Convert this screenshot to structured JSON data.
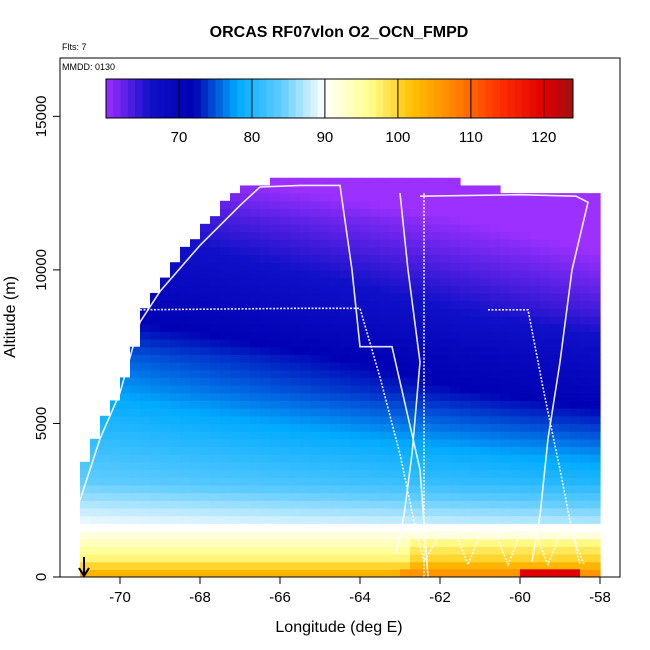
{
  "chart_data": {
    "type": "heatmap",
    "title": "ORCAS RF07vlon O2_OCN_FMPD",
    "annotations": {
      "flights": "Flts: 7",
      "date": "MMDD: 0130"
    },
    "xlabel": "Longitude (deg E)",
    "ylabel": "Altitude (m)",
    "xlim": [
      -71.5,
      -57.5
    ],
    "ylim": [
      0,
      16900
    ],
    "x_ticks": [
      -70,
      -68,
      -66,
      -64,
      -62,
      -60,
      -58
    ],
    "x_tick_labels": [
      "-70",
      "-68",
      "-66",
      "-64",
      "-62",
      "-60",
      "-58"
    ],
    "y_ticks": [
      0,
      5000,
      10000,
      15000
    ],
    "y_tick_labels": [
      "0",
      "5000",
      "10000",
      "15000"
    ],
    "grid": false,
    "colorbar": {
      "range": [
        60,
        124
      ],
      "ticks": [
        70,
        80,
        90,
        100,
        110,
        120
      ],
      "tick_labels": [
        "70",
        "80",
        "90",
        "100",
        "110",
        "120"
      ],
      "stops": [
        {
          "v": 60,
          "c": "#9b30ff"
        },
        {
          "v": 66,
          "c": "#1010c8"
        },
        {
          "v": 72,
          "c": "#0000b4"
        },
        {
          "v": 78,
          "c": "#00aaff"
        },
        {
          "v": 84,
          "c": "#60ccff"
        },
        {
          "v": 90,
          "c": "#ffffff"
        },
        {
          "v": 96,
          "c": "#ffff90"
        },
        {
          "v": 102,
          "c": "#ffc000"
        },
        {
          "v": 108,
          "c": "#ff8000"
        },
        {
          "v": 114,
          "c": "#ff3000"
        },
        {
          "v": 120,
          "c": "#e00000"
        },
        {
          "v": 124,
          "c": "#a01010"
        }
      ]
    },
    "field": {
      "lon_range": [
        -71,
        -58.2
      ],
      "alt_max": 13000,
      "columns": [
        {
          "lon": -71.0,
          "top": 3700
        },
        {
          "lon": -70.5,
          "top": 5200
        },
        {
          "lon": -70.0,
          "top": 6300
        },
        {
          "lon": -69.5,
          "top": 8700
        },
        {
          "lon": -69.0,
          "top": 9700
        },
        {
          "lon": -68.5,
          "top": 10600
        },
        {
          "lon": -68.0,
          "top": 11300
        },
        {
          "lon": -67.5,
          "top": 12100
        },
        {
          "lon": -67.0,
          "top": 12700
        },
        {
          "lon": -66.0,
          "top": 12800
        },
        {
          "lon": -65.0,
          "top": 13000
        },
        {
          "lon": -64.0,
          "top": 12800
        },
        {
          "lon": -62.0,
          "top": 12800
        },
        {
          "lon": -61.0,
          "top": 12700
        },
        {
          "lon": -60.5,
          "top": 12500
        },
        {
          "lon": -58.2,
          "top": 12500
        }
      ],
      "profile": [
        {
          "alt": 0,
          "v": 103
        },
        {
          "alt": 500,
          "v": 97
        },
        {
          "alt": 1500,
          "v": 90
        },
        {
          "alt": 3000,
          "v": 84
        },
        {
          "alt": 5000,
          "v": 80
        },
        {
          "alt": 7000,
          "v": 76
        },
        {
          "alt": 8500,
          "v": 72
        },
        {
          "alt": 10000,
          "v": 69
        },
        {
          "alt": 11500,
          "v": 66
        },
        {
          "alt": 13000,
          "v": 62
        }
      ],
      "surface_bins": [
        {
          "lon0": -63.0,
          "lon1": -60.0,
          "v": 106
        },
        {
          "lon0": -60.0,
          "lon1": -58.5,
          "v": 120
        }
      ]
    },
    "flight_tracks": [
      [
        [
          -71,
          2500
        ],
        [
          -70.5,
          4500
        ],
        [
          -70,
          6000
        ],
        [
          -69.5,
          8300
        ],
        [
          -69,
          9300
        ],
        [
          -68,
          10800
        ],
        [
          -67,
          12100
        ],
        [
          -66.5,
          12700
        ],
        [
          -65.5,
          12750
        ],
        [
          -64.5,
          12750
        ],
        [
          -64.2,
          10000
        ],
        [
          -64,
          7500
        ],
        [
          -63.2,
          7500
        ],
        [
          -62.5,
          3500
        ],
        [
          -62.3,
          0
        ]
      ],
      [
        [
          -69.5,
          8700
        ],
        [
          -65.5,
          8750
        ],
        [
          -64.0,
          8750
        ],
        [
          -63.5,
          6500
        ],
        [
          -63,
          4000
        ],
        [
          -62.6,
          1500
        ],
        [
          -62.4,
          500
        ],
        [
          -62,
          1400
        ],
        [
          -61.6,
          1400
        ],
        [
          -61.3,
          400
        ],
        [
          -61,
          1400
        ],
        [
          -60.6,
          1400
        ],
        [
          -60.3,
          400
        ],
        [
          -60,
          1400
        ],
        [
          -59.6,
          1400
        ],
        [
          -59.3,
          400
        ],
        [
          -59,
          1400
        ],
        [
          -58.7,
          1400
        ],
        [
          -58.4,
          400
        ]
      ],
      [
        [
          -62.5,
          12400
        ],
        [
          -60.0,
          12450
        ],
        [
          -58.6,
          12400
        ],
        [
          -58.3,
          12200
        ],
        [
          -58.7,
          10000
        ],
        [
          -59,
          7000
        ],
        [
          -59.3,
          4500
        ],
        [
          -59.5,
          2000
        ],
        [
          -59.7,
          500
        ]
      ],
      [
        [
          -60.8,
          8700
        ],
        [
          -59.8,
          8700
        ],
        [
          -59.4,
          6000
        ],
        [
          -59,
          3500
        ],
        [
          -58.7,
          1500
        ],
        [
          -58.5,
          400
        ]
      ],
      [
        [
          -63,
          12500
        ],
        [
          -62.8,
          10000
        ],
        [
          -62.5,
          7000
        ],
        [
          -62.7,
          4000
        ],
        [
          -62.9,
          2000
        ],
        [
          -63.1,
          800
        ]
      ],
      [
        [
          -62.4,
          12500
        ],
        [
          -62.4,
          0
        ]
      ]
    ],
    "marker": {
      "lon": -70.9,
      "alt": 500,
      "shape": "down-arrow"
    }
  }
}
